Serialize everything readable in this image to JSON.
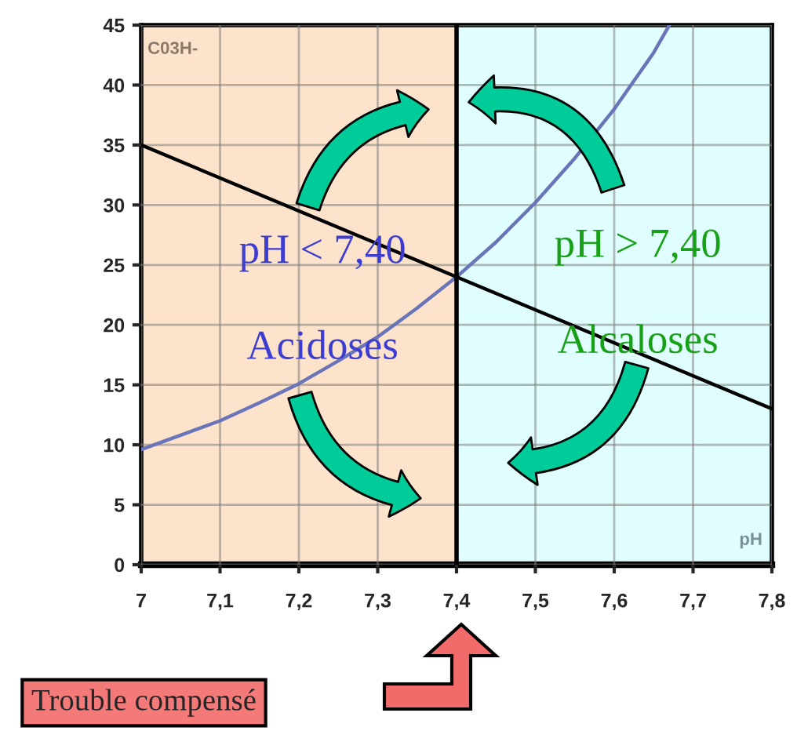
{
  "chart_data": {
    "type": "line",
    "series": [
      {
        "color": "#6a74b8",
        "x": [
          7.0,
          7.05,
          7.1,
          7.15,
          7.2,
          7.25,
          7.3,
          7.35,
          7.4,
          7.45,
          7.5,
          7.55,
          7.6,
          7.65,
          7.67
        ],
        "values": [
          9.6,
          10.8,
          12.0,
          13.5,
          15.1,
          17.0,
          19.0,
          21.4,
          24.0,
          26.9,
          30.2,
          33.9,
          38.0,
          42.7,
          45.0
        ]
      },
      {
        "color": "#000000",
        "x": [
          7.0,
          7.8
        ],
        "values": [
          35,
          13
        ]
      }
    ],
    "xlim": [
      7,
      7.8
    ],
    "ylim": [
      0,
      45
    ],
    "xticks": [
      7,
      {
        "value": 7.1,
        "label": "7,1"
      },
      {
        "value": 7.2,
        "label": "7,2"
      },
      {
        "value": 7.3,
        "label": "7,3"
      },
      {
        "value": 7.4,
        "label": "7,4"
      },
      {
        "value": 7.5,
        "label": "7,5"
      },
      {
        "value": 7.6,
        "label": "7,6"
      },
      {
        "value": 7.7,
        "label": "7,7"
      },
      {
        "value": 7.8,
        "label": "7,8"
      }
    ],
    "yticks": [
      0,
      5,
      10,
      15,
      20,
      25,
      30,
      35,
      40,
      45
    ],
    "grid": true,
    "marker": "none",
    "line_style": "solid",
    "bands": [
      {
        "axis": "x",
        "from": 7.0,
        "to": 7.4,
        "color": "#fde3cb"
      },
      {
        "axis": "x",
        "from": 7.4,
        "to": 7.8,
        "color": "#e0fefe"
      }
    ],
    "ref_lines": [
      {
        "axis": "x",
        "value": 7.4,
        "color": "#000000",
        "line_style": "solid"
      }
    ],
    "annotations": [
      "C03H-",
      "pH < 7,40",
      "Acidoses",
      "pH > 7,40",
      "Alcaloses",
      "pH",
      "Trouble compensé"
    ]
  }
}
